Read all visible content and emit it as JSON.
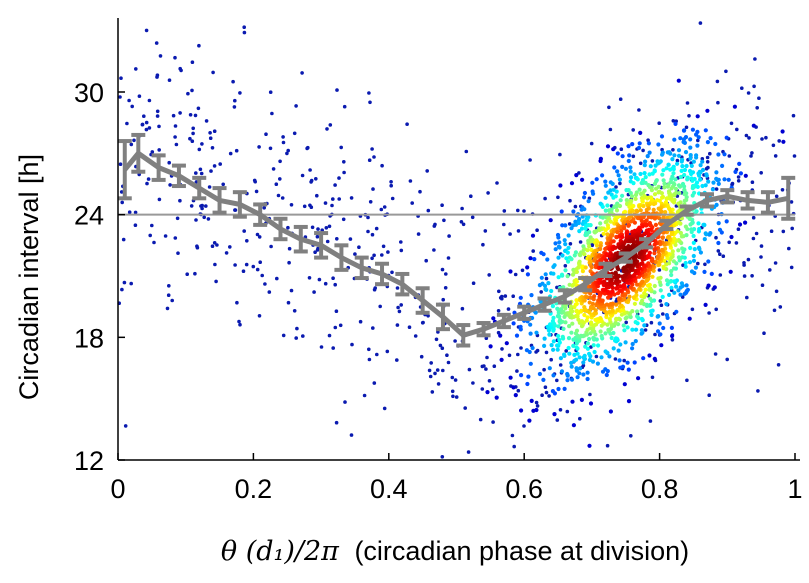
{
  "chart_data": {
    "type": "scatter",
    "title": "",
    "xlabel": "θ(d₁)/2π (circadian phase at division)",
    "xlabel_math": "θ (d₁)/2π",
    "xlabel_text": "(circadian phase at division)",
    "ylabel": "Circadian interval [h]",
    "xlim": [
      0,
      1
    ],
    "ylim": [
      12,
      33.5
    ],
    "xticks": [
      0,
      0.2,
      0.4,
      0.6,
      0.8,
      1
    ],
    "xtick_labels": [
      "0",
      "0.2",
      "0.4",
      "0.6",
      "0.8",
      "1"
    ],
    "yticks": [
      12,
      18,
      24,
      30
    ],
    "ytick_labels": [
      "12",
      "18",
      "24",
      "30"
    ],
    "reference_line": {
      "y": 24,
      "color": "#999999"
    },
    "mean_series": {
      "name": "binned mean ± error",
      "color": "#808080",
      "x": [
        0.01,
        0.03,
        0.06,
        0.09,
        0.12,
        0.15,
        0.18,
        0.21,
        0.24,
        0.27,
        0.3,
        0.33,
        0.36,
        0.39,
        0.42,
        0.45,
        0.48,
        0.51,
        0.54,
        0.57,
        0.6,
        0.63,
        0.66,
        0.69,
        0.72,
        0.75,
        0.78,
        0.81,
        0.84,
        0.87,
        0.9,
        0.93,
        0.96,
        0.99
      ],
      "y": [
        26.2,
        27.0,
        26.3,
        25.9,
        25.3,
        24.7,
        24.5,
        24.0,
        23.3,
        22.8,
        22.5,
        21.9,
        21.4,
        21.1,
        20.6,
        19.8,
        19.0,
        18.1,
        18.4,
        18.8,
        19.2,
        19.6,
        20.0,
        20.6,
        21.3,
        21.9,
        22.6,
        23.5,
        24.2,
        24.7,
        24.9,
        24.7,
        24.6,
        24.8
      ],
      "err": [
        1.4,
        0.9,
        0.6,
        0.5,
        0.5,
        0.6,
        0.6,
        0.5,
        0.5,
        0.6,
        0.6,
        0.6,
        0.5,
        0.5,
        0.5,
        0.6,
        0.6,
        0.5,
        0.3,
        0.3,
        0.3,
        0.3,
        0.3,
        0.3,
        0.3,
        0.2,
        0.2,
        0.2,
        0.2,
        0.3,
        0.3,
        0.4,
        0.5,
        1.0
      ]
    },
    "scatter": {
      "colormap": "jet (point density)",
      "background": {
        "count": 750,
        "x_range": [
          0,
          1
        ],
        "y_range": [
          12,
          33.5
        ],
        "color": "#0a1ab0"
      },
      "cluster": {
        "count": 1900,
        "center": [
          0.75,
          21.8
        ],
        "sd": [
          0.065,
          2.6
        ],
        "correlation": 0.6
      }
    }
  }
}
